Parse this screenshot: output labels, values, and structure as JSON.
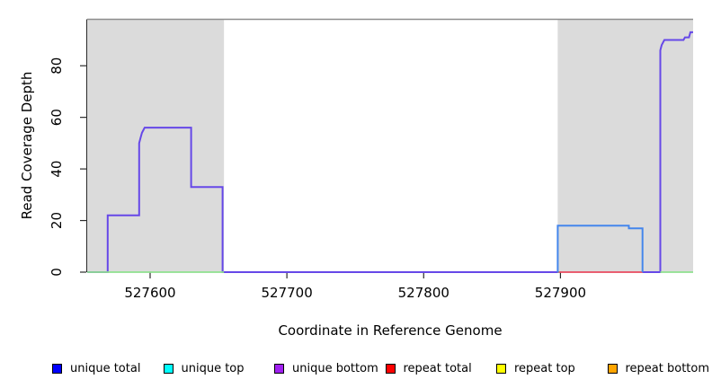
{
  "chart_data": {
    "type": "line",
    "step": true,
    "title": "",
    "xlabel": "Coordinate in Reference Genome",
    "ylabel": "Read Coverage Depth",
    "xlim": [
      527554,
      527997
    ],
    "ylim": [
      0,
      98
    ],
    "x_ticks": [
      527600,
      527700,
      527800,
      527900
    ],
    "y_ticks": [
      0,
      20,
      40,
      60,
      80
    ],
    "grid": false,
    "legend_position": "bottom",
    "colors": {
      "shaded_region": "#DBDBDB",
      "plot_top_border": "#8E8E8E",
      "axis": "#2A2A2A",
      "unique_steps": "#6648E8",
      "unique_total_step": "#4486EC",
      "repeat_zero_line": "#E84A5E",
      "top_zero_line": "#8FE08F"
    },
    "shaded_regions": [
      {
        "name": "left-gray-region",
        "x0": 527554,
        "x1": 527654
      },
      {
        "name": "right-gray-region",
        "x0": 527898,
        "x1": 527997
      }
    ],
    "series": [
      {
        "name": "unique-coverage-left-steps",
        "color": "#6648E8",
        "width": 2,
        "points": [
          [
            527554,
            0
          ],
          [
            527569,
            0
          ],
          [
            527569,
            22
          ],
          [
            527592,
            22
          ],
          [
            527592,
            50
          ],
          [
            527593,
            52
          ],
          [
            527594,
            54
          ],
          [
            527595,
            55
          ],
          [
            527596,
            56
          ],
          [
            527630,
            56
          ],
          [
            527630,
            33
          ],
          [
            527653,
            33
          ],
          [
            527653,
            0
          ],
          [
            527898,
            0
          ]
        ]
      },
      {
        "name": "zero-line-left-green",
        "color": "#8FE08F",
        "width": 1.8,
        "points": [
          [
            527554,
            0
          ],
          [
            527654,
            0
          ]
        ]
      },
      {
        "name": "repeat-total-zero-red",
        "color": "#E84A5E",
        "width": 1.8,
        "points": [
          [
            527899,
            0
          ],
          [
            527960,
            0
          ]
        ]
      },
      {
        "name": "unique-bottom-right-steps",
        "color": "#6648E8",
        "width": 2,
        "points": [
          [
            527960,
            0
          ],
          [
            527973,
            0
          ],
          [
            527973,
            86
          ],
          [
            527974,
            88
          ],
          [
            527976,
            90
          ],
          [
            527990,
            90
          ],
          [
            527991,
            91
          ],
          [
            527994,
            91
          ],
          [
            527995,
            93
          ],
          [
            527997,
            93
          ]
        ]
      },
      {
        "name": "unique-total-right-step",
        "color": "#4486EC",
        "width": 2,
        "points": [
          [
            527898,
            0
          ],
          [
            527898,
            18
          ],
          [
            527950,
            18
          ],
          [
            527950,
            17
          ],
          [
            527960,
            17
          ],
          [
            527960,
            0
          ]
        ]
      },
      {
        "name": "zero-line-right-green",
        "color": "#8FE08F",
        "width": 1.8,
        "points": [
          [
            527973,
            0
          ],
          [
            527997,
            0
          ]
        ]
      }
    ],
    "legend": [
      {
        "label": "unique total",
        "color": "#0000FF"
      },
      {
        "label": "unique top",
        "color": "#00FFFF"
      },
      {
        "label": "unique bottom",
        "color": "#A020F0"
      },
      {
        "label": "repeat total",
        "color": "#FF0000"
      },
      {
        "label": "repeat top",
        "color": "#FFFF00"
      },
      {
        "label": "repeat bottom",
        "color": "#FFA500"
      }
    ]
  }
}
